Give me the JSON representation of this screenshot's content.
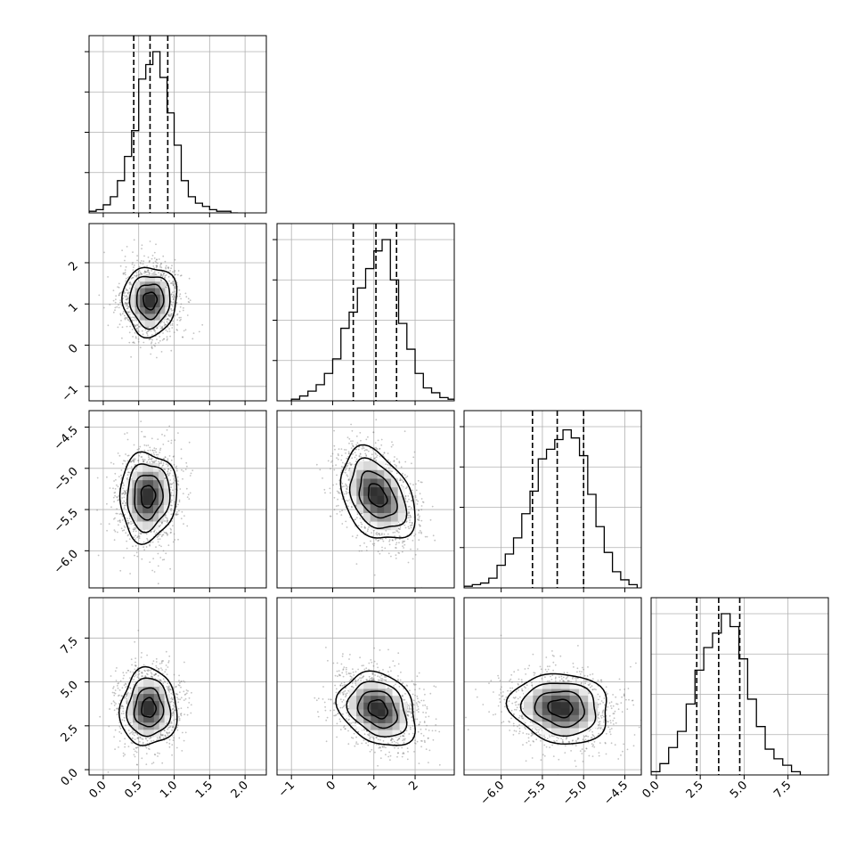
{
  "chart_data": {
    "type": "corner",
    "parameters": 4,
    "grid": true,
    "axes": [
      {
        "range": [
          -0.2,
          2.3
        ],
        "ticks": [
          0.0,
          0.5,
          1.0,
          1.5,
          2.0
        ],
        "tick_labels": [
          "0.0",
          "0.5",
          "1.0",
          "1.5",
          "2.0"
        ]
      },
      {
        "range": [
          -1.35,
          2.95
        ],
        "ticks": [
          -1,
          0,
          1,
          2
        ],
        "tick_labels": [
          "−1",
          "0",
          "1",
          "2"
        ]
      },
      {
        "range": [
          -6.45,
          -4.3
        ],
        "ticks": [
          -6.0,
          -5.5,
          -5.0,
          -4.5
        ],
        "tick_labels": [
          "−6.0",
          "−5.5",
          "−5.0",
          "−4.5"
        ]
      },
      {
        "range": [
          -0.3,
          9.8
        ],
        "ticks": [
          0.0,
          2.5,
          5.0,
          7.5
        ],
        "tick_labels": [
          "0.0",
          "2.5",
          "5.0",
          "7.5"
        ]
      }
    ],
    "quantiles": [
      [
        0.43,
        0.66,
        0.91
      ],
      [
        0.5,
        1.05,
        1.55
      ],
      [
        -5.62,
        -5.32,
        -5.0
      ],
      [
        2.3,
        3.55,
        4.75
      ]
    ],
    "histograms": [
      {
        "bin_edges": [
          -0.2,
          -0.1,
          0.0,
          0.1,
          0.2,
          0.3,
          0.4,
          0.5,
          0.6,
          0.7,
          0.8,
          0.9,
          1.0,
          1.1,
          1.2,
          1.3,
          1.4,
          1.5,
          1.6,
          1.7,
          1.8,
          1.9
        ],
        "counts": [
          0.01,
          0.02,
          0.05,
          0.1,
          0.2,
          0.35,
          0.51,
          0.83,
          0.92,
          1.0,
          0.84,
          0.62,
          0.42,
          0.2,
          0.1,
          0.06,
          0.04,
          0.02,
          0.01,
          0.01,
          0.0
        ]
      },
      {
        "bin_edges": [
          -1.0,
          -0.8,
          -0.6,
          -0.4,
          -0.2,
          0.0,
          0.2,
          0.4,
          0.6,
          0.8,
          1.0,
          1.2,
          1.4,
          1.6,
          1.8,
          2.0,
          2.2,
          2.4,
          2.6,
          2.8,
          3.0
        ],
        "counts": [
          0.01,
          0.03,
          0.06,
          0.1,
          0.17,
          0.26,
          0.45,
          0.55,
          0.7,
          0.82,
          0.93,
          1.0,
          0.75,
          0.48,
          0.32,
          0.17,
          0.08,
          0.05,
          0.02,
          0.01
        ]
      },
      {
        "bin_edges": [
          -6.45,
          -6.35,
          -6.25,
          -6.15,
          -6.05,
          -5.95,
          -5.85,
          -5.75,
          -5.65,
          -5.55,
          -5.45,
          -5.35,
          -5.25,
          -5.15,
          -5.05,
          -4.95,
          -4.85,
          -4.75,
          -4.65,
          -4.55,
          -4.45,
          -4.35
        ],
        "counts": [
          0.01,
          0.02,
          0.03,
          0.06,
          0.14,
          0.21,
          0.31,
          0.46,
          0.6,
          0.8,
          0.86,
          0.92,
          0.98,
          0.93,
          0.82,
          0.58,
          0.38,
          0.22,
          0.1,
          0.05,
          0.02
        ]
      },
      {
        "bin_edges": [
          -0.3,
          0.2,
          0.7,
          1.2,
          1.7,
          2.2,
          2.7,
          3.2,
          3.7,
          4.2,
          4.7,
          5.2,
          5.7,
          6.2,
          6.7,
          7.2,
          7.7,
          8.2
        ],
        "counts": [
          0.02,
          0.07,
          0.17,
          0.27,
          0.44,
          0.65,
          0.79,
          0.88,
          1.0,
          0.92,
          0.72,
          0.47,
          0.3,
          0.16,
          0.1,
          0.06,
          0.02
        ]
      }
    ],
    "pairs": [
      {
        "x": 0,
        "y": 1,
        "center": [
          0.66,
          1.08
        ],
        "sd": [
          0.19,
          0.42
        ],
        "rho": 0.02
      },
      {
        "x": 0,
        "y": 2,
        "center": [
          0.63,
          -5.34
        ],
        "sd": [
          0.2,
          0.27
        ],
        "rho": 0.05
      },
      {
        "x": 1,
        "y": 2,
        "center": [
          1.08,
          -5.33
        ],
        "sd": [
          0.45,
          0.28
        ],
        "rho": -0.35
      },
      {
        "x": 0,
        "y": 3,
        "center": [
          0.64,
          3.52
        ],
        "sd": [
          0.2,
          1.1
        ],
        "rho": 0.02
      },
      {
        "x": 1,
        "y": 3,
        "center": [
          1.1,
          3.45
        ],
        "sd": [
          0.47,
          1.05
        ],
        "rho": -0.25
      },
      {
        "x": 2,
        "y": 3,
        "center": [
          -5.28,
          3.5
        ],
        "sd": [
          0.3,
          1.0
        ],
        "rho": -0.12
      }
    ],
    "contour_levels": [
      0.5,
      1.0,
      1.5,
      2.0
    ]
  }
}
